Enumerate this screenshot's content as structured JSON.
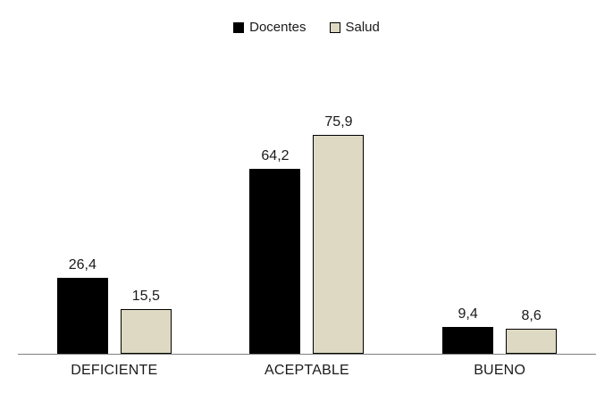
{
  "chart_data": {
    "type": "bar",
    "title": "",
    "xlabel": "",
    "ylabel": "",
    "categories": [
      "DEFICIENTE",
      "ACEPTABLE",
      "BUENO"
    ],
    "series": [
      {
        "name": "Docentes",
        "color": "#000000",
        "border_color": "#000000",
        "values": [
          26.4,
          64.2,
          9.4
        ],
        "value_labels": [
          "26,4",
          "64,2",
          "9,4"
        ]
      },
      {
        "name": "Salud",
        "color": "#DDD9C3",
        "border_color": "#000000",
        "values": [
          15.5,
          75.9,
          8.6
        ],
        "value_labels": [
          "15,5",
          "75,9",
          "8,6"
        ]
      }
    ],
    "ylim": [
      0,
      100
    ],
    "grid": false,
    "y_axis_visible": false,
    "legend_position": "top-center",
    "axis_line_color": "#808080",
    "text_color": "#1a1a1a",
    "background_color": "#ffffff",
    "decimal_separator": ","
  }
}
